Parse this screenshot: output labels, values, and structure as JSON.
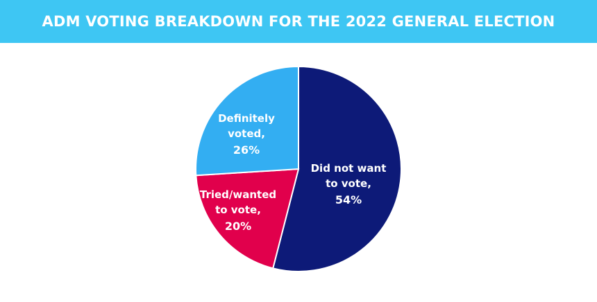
{
  "header": {
    "title": "ADM VOTING BREAKDOWN FOR THE 2022 GENERAL ELECTION"
  },
  "colors": {
    "header_bg": "#3ec6f3",
    "did_not_want": "#0d1a78",
    "tried_wanted": "#e1004c",
    "definitely_voted": "#33aef2"
  },
  "chart_data": {
    "type": "pie",
    "title": "ADM VOTING BREAKDOWN FOR THE 2022 GENERAL ELECTION",
    "slices": [
      {
        "label_lines": [
          "Did not want",
          "to vote,"
        ],
        "value": 54,
        "value_label": "54%",
        "color": "#0d1a78"
      },
      {
        "label_lines": [
          "Tried/wanted",
          "to vote,"
        ],
        "value": 20,
        "value_label": "20%",
        "color": "#e1004c"
      },
      {
        "label_lines": [
          "Definitely",
          "voted,"
        ],
        "value": 26,
        "value_label": "26%",
        "color": "#33aef2"
      }
    ],
    "start_angle": "12 o'clock",
    "direction": "clockwise",
    "legend": "none"
  }
}
